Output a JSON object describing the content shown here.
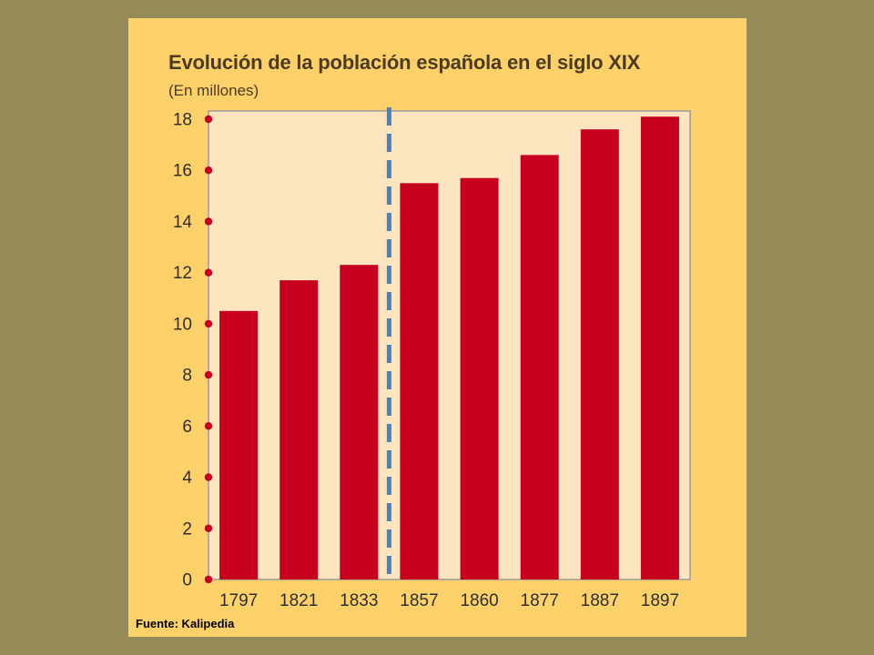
{
  "chart_data": {
    "type": "bar",
    "title": "Evolución de la población española en el siglo XIX",
    "subtitle": "(En millones)",
    "categories": [
      "1797",
      "1821",
      "1833",
      "1857",
      "1860",
      "1877",
      "1887",
      "1897"
    ],
    "values": [
      10.5,
      11.7,
      12.3,
      15.5,
      15.7,
      16.6,
      17.6,
      18.1
    ],
    "yticks": [
      0,
      2,
      4,
      6,
      8,
      10,
      12,
      14,
      16,
      18
    ],
    "ylim": [
      0,
      18
    ],
    "xlabel": "",
    "ylabel": "",
    "grid": false,
    "divider_after_category": "1833",
    "bar_color": "#c8001f",
    "plot_background": "#fde5c0",
    "divider_color": "#4a7fc0",
    "tick_dot_color": "#c8001f"
  },
  "footer": {
    "source": "Fuente: Kalipedia"
  }
}
